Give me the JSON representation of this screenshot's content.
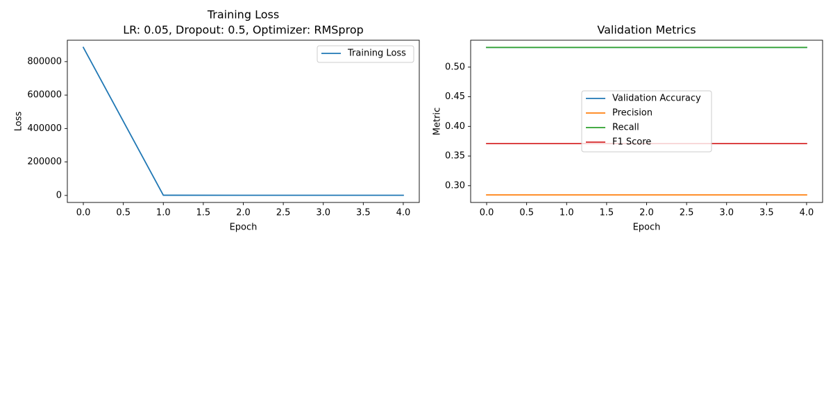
{
  "chart_data": [
    {
      "type": "line",
      "title": "Training Loss",
      "subtitle": "LR: 0.05, Dropout: 0.5, Optimizer: RMSprop",
      "xlabel": "Epoch",
      "ylabel": "Loss",
      "x": [
        0,
        1,
        2,
        3,
        4
      ],
      "xlim": [
        -0.2,
        4.2
      ],
      "ylim": [
        -42000,
        928000
      ],
      "xticks": [
        0.0,
        0.5,
        1.0,
        1.5,
        2.0,
        2.5,
        3.0,
        3.5,
        4.0
      ],
      "xtick_labels": [
        "0.0",
        "0.5",
        "1.0",
        "1.5",
        "2.0",
        "2.5",
        "3.0",
        "3.5",
        "4.0"
      ],
      "yticks": [
        0,
        200000,
        400000,
        600000,
        800000
      ],
      "ytick_labels": [
        "0",
        "200000",
        "400000",
        "600000",
        "800000"
      ],
      "grid": false,
      "legend_position": "top-right",
      "series": [
        {
          "name": "Training Loss",
          "color": "#1f77b4",
          "values": [
            885000,
            1200,
            1100,
            1000,
            1000
          ]
        }
      ]
    },
    {
      "type": "line",
      "title": "Validation Metrics",
      "xlabel": "Epoch",
      "ylabel": "Metric",
      "x": [
        0,
        1,
        2,
        3,
        4
      ],
      "xlim": [
        -0.2,
        4.2
      ],
      "ylim": [
        0.2717,
        0.5454
      ],
      "xticks": [
        0.0,
        0.5,
        1.0,
        1.5,
        2.0,
        2.5,
        3.0,
        3.5,
        4.0
      ],
      "xtick_labels": [
        "0.0",
        "0.5",
        "1.0",
        "1.5",
        "2.0",
        "2.5",
        "3.0",
        "3.5",
        "4.0"
      ],
      "yticks": [
        0.3,
        0.35,
        0.4,
        0.45,
        0.5
      ],
      "ytick_labels": [
        "0.30",
        "0.35",
        "0.40",
        "0.45",
        "0.50"
      ],
      "grid": false,
      "legend_position": "center",
      "series": [
        {
          "name": "Validation Accuracy",
          "color": "#1f77b4",
          "values": [
            0.5333,
            0.5333,
            0.5333,
            0.5333,
            0.5333
          ]
        },
        {
          "name": "Precision",
          "color": "#ff7f0e",
          "values": [
            0.2844,
            0.2844,
            0.2844,
            0.2844,
            0.2844
          ]
        },
        {
          "name": "Recall",
          "color": "#2ca02c",
          "values": [
            0.5333,
            0.5333,
            0.5333,
            0.5333,
            0.5333
          ]
        },
        {
          "name": "F1 Score",
          "color": "#d62728",
          "values": [
            0.371,
            0.371,
            0.371,
            0.371,
            0.371
          ]
        }
      ]
    }
  ]
}
